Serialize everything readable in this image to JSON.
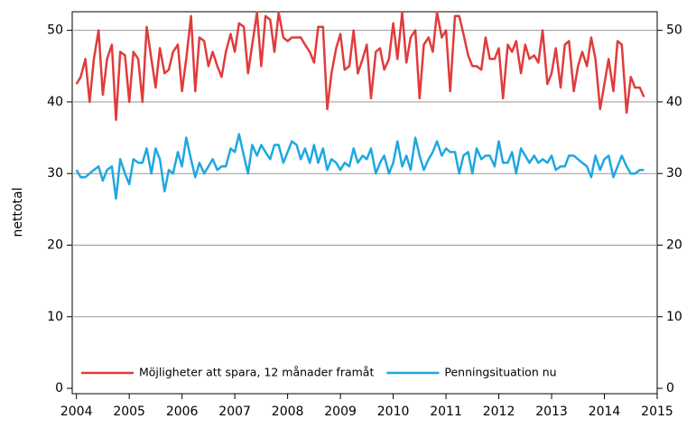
{
  "chart_data": {
    "type": "line",
    "y_label": "nettotal",
    "x": [
      2004,
      2004.08,
      2004.17,
      2004.25,
      2004.33,
      2004.42,
      2004.5,
      2004.58,
      2004.67,
      2004.75,
      2004.83,
      2004.92,
      2005,
      2005.08,
      2005.17,
      2005.25,
      2005.33,
      2005.42,
      2005.5,
      2005.58,
      2005.67,
      2005.75,
      2005.83,
      2005.92,
      2006,
      2006.08,
      2006.17,
      2006.25,
      2006.33,
      2006.42,
      2006.5,
      2006.58,
      2006.67,
      2006.75,
      2006.83,
      2006.92,
      2007,
      2007.08,
      2007.17,
      2007.25,
      2007.33,
      2007.42,
      2007.5,
      2007.58,
      2007.67,
      2007.75,
      2007.83,
      2007.92,
      2008,
      2008.08,
      2008.17,
      2008.25,
      2008.33,
      2008.42,
      2008.5,
      2008.58,
      2008.67,
      2008.75,
      2008.83,
      2008.92,
      2009,
      2009.08,
      2009.17,
      2009.25,
      2009.33,
      2009.42,
      2009.5,
      2009.58,
      2009.67,
      2009.75,
      2009.83,
      2009.92,
      2010,
      2010.08,
      2010.17,
      2010.25,
      2010.33,
      2010.42,
      2010.5,
      2010.58,
      2010.67,
      2010.75,
      2010.83,
      2010.92,
      2011,
      2011.08,
      2011.17,
      2011.25,
      2011.33,
      2011.42,
      2011.5,
      2011.58,
      2011.67,
      2011.75,
      2011.83,
      2011.92,
      2012,
      2012.08,
      2012.17,
      2012.25,
      2012.33,
      2012.42,
      2012.5,
      2012.58,
      2012.67,
      2012.75,
      2012.83,
      2012.92,
      2013,
      2013.08,
      2013.17,
      2013.25,
      2013.33,
      2013.42,
      2013.5,
      2013.58,
      2013.67,
      2013.75,
      2013.83,
      2013.92,
      2014,
      2014.08,
      2014.17,
      2014.25,
      2014.33,
      2014.42,
      2014.5,
      2014.58,
      2014.67,
      2014.75
    ],
    "series": [
      {
        "name": "Möjligheter att spara, 12 månader framåt",
        "color": "#e03c3c",
        "values": [
          42.5,
          43.5,
          46,
          40,
          46,
          50,
          41,
          46,
          48,
          37.5,
          47,
          46.5,
          40,
          47,
          46,
          40,
          50.5,
          46,
          42,
          47.5,
          44,
          44.5,
          47,
          48,
          41.5,
          46,
          52,
          41.5,
          49,
          48.5,
          45,
          47,
          45,
          43.5,
          47,
          49.5,
          47,
          51,
          50.5,
          44,
          48,
          52.5,
          45,
          52,
          51.5,
          47,
          52.5,
          49,
          48.5,
          49,
          49,
          49,
          48,
          47,
          45.5,
          50.5,
          50.5,
          39,
          44,
          47.5,
          49.5,
          44.5,
          45,
          50,
          44,
          46,
          48,
          40.5,
          47,
          47.5,
          44.5,
          46,
          51,
          46,
          52.5,
          45.5,
          49,
          50,
          40.5,
          48,
          49,
          47,
          52.5,
          49,
          50,
          41.5,
          52,
          52,
          49.5,
          46.5,
          45,
          45,
          44.5,
          49,
          46,
          46,
          47.5,
          40.5,
          48,
          47,
          48.5,
          44,
          48,
          46,
          46.5,
          45.5,
          50,
          42.5,
          44,
          47.5,
          42,
          48,
          48.5,
          41.5,
          45,
          47,
          45,
          49,
          46,
          39,
          42.5,
          46,
          41.5,
          48.5,
          48,
          38.5,
          43.5,
          42,
          42,
          40.7
        ]
      },
      {
        "name": "Penningsituation nu",
        "color": "#1ea8e0",
        "values": [
          30.5,
          29.5,
          29.5,
          30,
          30.5,
          31,
          29,
          30.5,
          31,
          26.5,
          32,
          30,
          28.5,
          32,
          31.5,
          31.5,
          33.5,
          30,
          33.5,
          32,
          27.5,
          30.5,
          30,
          33,
          31,
          35,
          32,
          29.5,
          31.5,
          30,
          31,
          32,
          30.5,
          31,
          31,
          33.5,
          33,
          35.5,
          32.5,
          30,
          34,
          32.5,
          34,
          33,
          32,
          34,
          34,
          31.5,
          33,
          34.5,
          34,
          32,
          33.5,
          31.5,
          34,
          31.5,
          33.5,
          30.5,
          32,
          31.5,
          30.5,
          31.5,
          31,
          33.5,
          31.5,
          32.5,
          32,
          33.5,
          30,
          31.5,
          32.5,
          30,
          31.5,
          34.5,
          31,
          32.5,
          30.5,
          35,
          32.5,
          30.5,
          32,
          33,
          34.5,
          32.5,
          33.5,
          33,
          33,
          30,
          32.5,
          33,
          30,
          33.5,
          32,
          32.5,
          32.5,
          31,
          34.5,
          31.5,
          31.5,
          33,
          30,
          33.5,
          32.5,
          31.5,
          32.5,
          31.5,
          32,
          31.5,
          32.5,
          30.5,
          31,
          31,
          32.5,
          32.5,
          32,
          31.5,
          31,
          29.5,
          32.5,
          30.5,
          32,
          32.5,
          29.5,
          31,
          32.5,
          31,
          30,
          30,
          30.5,
          30.5
        ]
      }
    ],
    "xlim": [
      2003.92,
      2015
    ],
    "xticks": [
      2004,
      2005,
      2006,
      2007,
      2008,
      2009,
      2010,
      2011,
      2012,
      2013,
      2014,
      2015
    ],
    "ylim": [
      -0.75,
      52.6
    ],
    "yticks": [
      0,
      10,
      20,
      30,
      40,
      50
    ],
    "y2lim": [
      -0.75,
      52.6
    ],
    "y2ticks": [
      0,
      10,
      20,
      30,
      40,
      50
    ],
    "grid": true,
    "legend": "bottom"
  }
}
